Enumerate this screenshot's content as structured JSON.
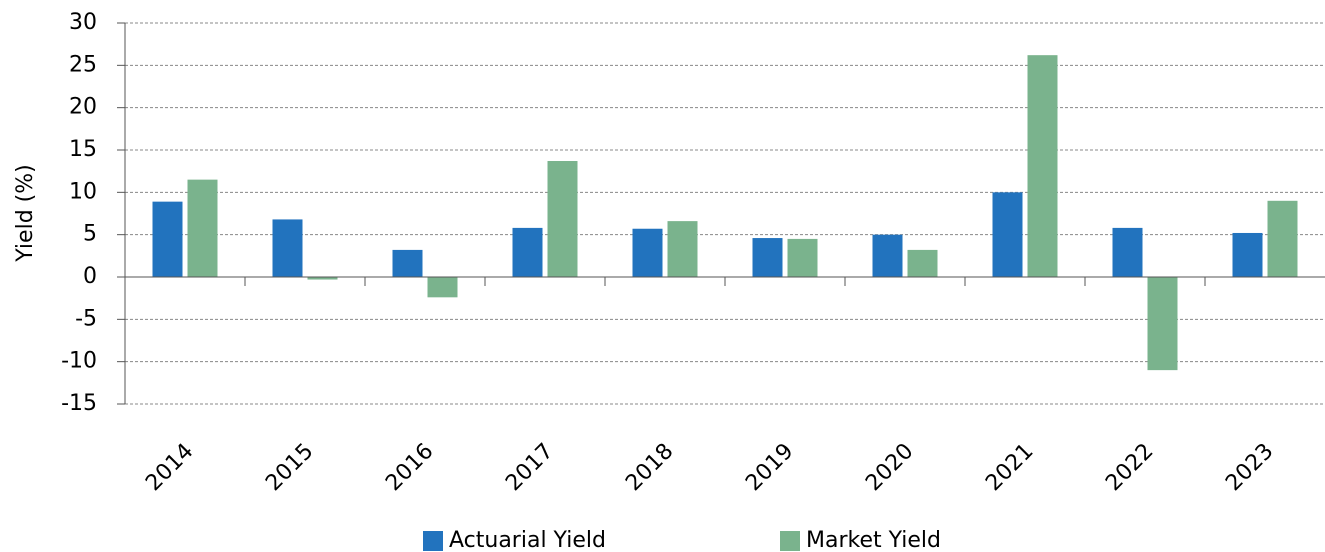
{
  "chart_data": {
    "type": "bar",
    "y_label": "Yield (%)",
    "categories": [
      "2014",
      "2015",
      "2016",
      "2017",
      "2018",
      "2019",
      "2020",
      "2021",
      "2022",
      "2023"
    ],
    "series": [
      {
        "name": "Actuarial Yield",
        "color": "#2273be",
        "values": [
          8.9,
          6.8,
          3.2,
          5.8,
          5.7,
          4.6,
          5.0,
          10.0,
          5.8,
          5.2
        ]
      },
      {
        "name": "Market Yield",
        "color": "#7ab38d",
        "values": [
          11.5,
          -0.3,
          -2.4,
          13.7,
          6.6,
          4.5,
          3.2,
          26.2,
          -11.0,
          9.0
        ]
      }
    ],
    "ylim": [
      -15,
      30
    ],
    "yticks": [
      -15,
      -10,
      -5,
      0,
      5,
      10,
      15,
      20,
      25,
      30
    ],
    "grid": true,
    "legend": "bottom"
  }
}
